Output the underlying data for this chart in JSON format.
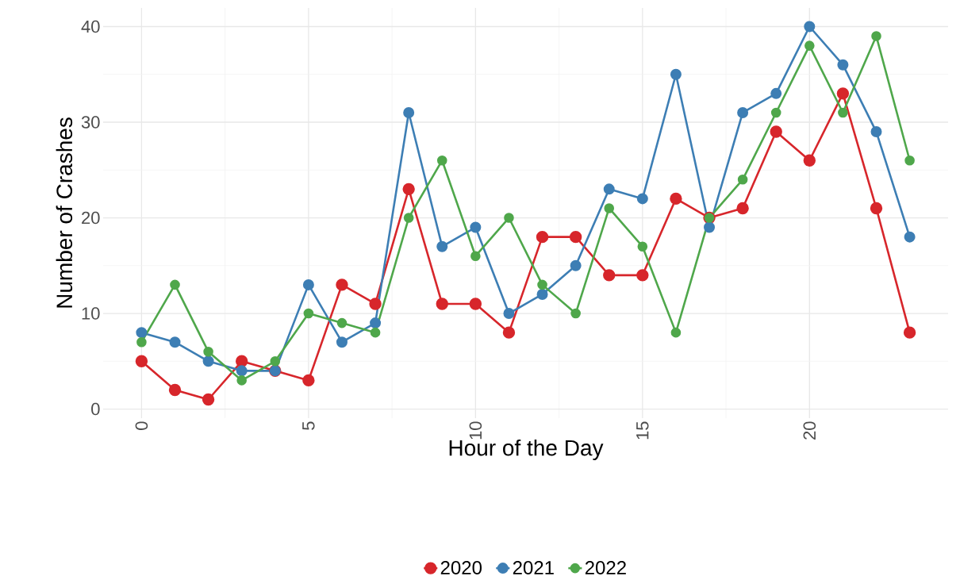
{
  "chart_data": {
    "type": "line",
    "xlabel": "Hour of the Day",
    "ylabel": "Number of Crashes",
    "x": [
      0,
      1,
      2,
      3,
      4,
      5,
      6,
      7,
      8,
      9,
      10,
      11,
      12,
      13,
      14,
      15,
      16,
      17,
      18,
      19,
      20,
      21,
      22,
      23
    ],
    "series": [
      {
        "name": "2020",
        "color": "#d7262b",
        "values": [
          5,
          2,
          1,
          5,
          4,
          3,
          13,
          11,
          23,
          11,
          11,
          8,
          18,
          18,
          14,
          14,
          22,
          20,
          21,
          29,
          26,
          33,
          21,
          8
        ]
      },
      {
        "name": "2021",
        "color": "#3d7eb4",
        "values": [
          8,
          7,
          5,
          4,
          4,
          13,
          7,
          9,
          31,
          17,
          19,
          10,
          12,
          15,
          23,
          22,
          35,
          19,
          31,
          33,
          40,
          36,
          29,
          18
        ]
      },
      {
        "name": "2022",
        "color": "#4fa74b",
        "values": [
          7,
          13,
          6,
          3,
          5,
          10,
          9,
          8,
          20,
          26,
          16,
          20,
          13,
          10,
          21,
          17,
          8,
          20,
          24,
          31,
          38,
          31,
          39,
          26
        ]
      }
    ],
    "xlim": [
      -1.15,
      24.15
    ],
    "ylim": [
      -0.95,
      41.95
    ],
    "xticks": [
      0,
      5,
      10,
      15,
      20
    ],
    "yticks": [
      0,
      10,
      20,
      30,
      40
    ],
    "grid": true,
    "legend": "bottom",
    "marker": "circle",
    "line_style": "solid"
  }
}
